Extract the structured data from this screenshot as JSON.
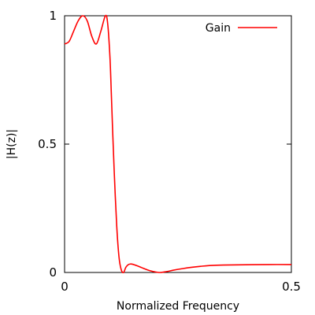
{
  "chart_data": {
    "type": "line",
    "title": "",
    "xlabel": "Normalized Frequency",
    "ylabel": "|H(z)|",
    "xlim": [
      0,
      0.5
    ],
    "ylim": [
      0,
      1
    ],
    "x_ticks": [
      0,
      0.5
    ],
    "x_tick_labels": [
      "0",
      "0.5"
    ],
    "y_ticks": [
      0,
      0.5,
      1
    ],
    "y_tick_labels": [
      "0",
      "0.5",
      "1"
    ],
    "grid": false,
    "legend_position": "top-right",
    "series": [
      {
        "name": "Gain",
        "color": "#ff0000",
        "x": [
          0,
          0.01,
          0.02,
          0.03,
          0.04,
          0.05,
          0.06,
          0.07,
          0.08,
          0.09,
          0.095,
          0.1,
          0.103,
          0.106,
          0.11,
          0.115,
          0.12,
          0.125,
          0.13,
          0.135,
          0.14,
          0.145,
          0.15,
          0.16,
          0.17,
          0.18,
          0.19,
          0.2,
          0.21,
          0.22,
          0.23,
          0.24,
          0.26,
          0.28,
          0.3,
          0.32,
          0.35,
          0.4,
          0.45,
          0.5
        ],
        "y": [
          0.89,
          0.9,
          0.94,
          0.98,
          1.0,
          0.98,
          0.92,
          0.89,
          0.94,
          1.0,
          0.97,
          0.84,
          0.7,
          0.55,
          0.37,
          0.18,
          0.06,
          0.01,
          0.0,
          0.02,
          0.03,
          0.033,
          0.032,
          0.026,
          0.019,
          0.012,
          0.006,
          0.002,
          0.0,
          0.002,
          0.005,
          0.009,
          0.015,
          0.02,
          0.024,
          0.027,
          0.029,
          0.03,
          0.031,
          0.031
        ]
      }
    ]
  }
}
